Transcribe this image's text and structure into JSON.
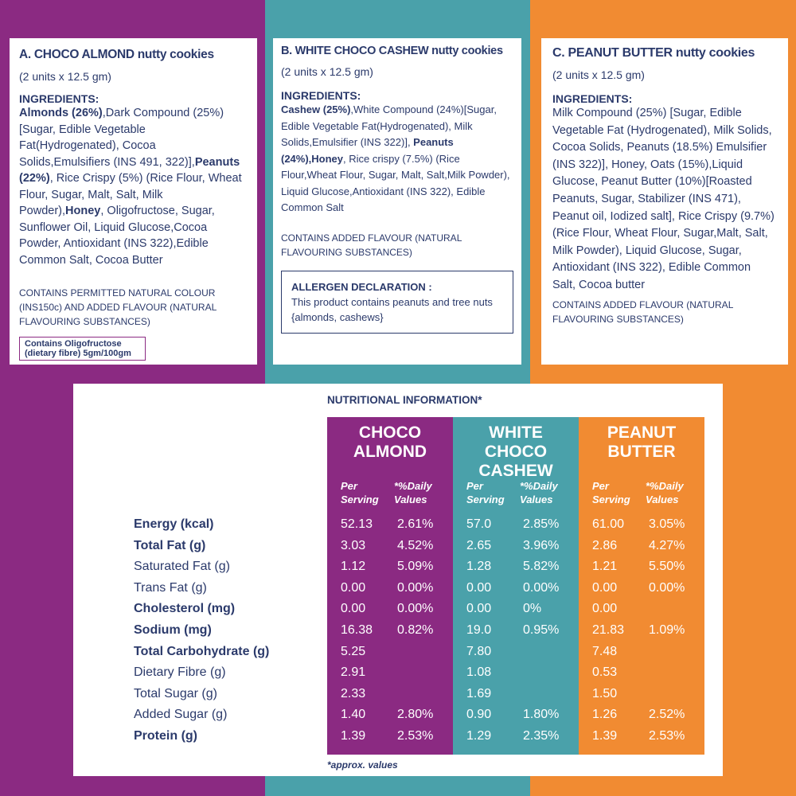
{
  "cards": [
    {
      "title": "A. CHOCO ALMOND nutty cookies",
      "subtitle": "(2 units x 12.5 gm)",
      "ingredients_heading": "INGREDIENTS:",
      "ingredients": [
        {
          "text": "Almonds (26%)",
          "bold": true
        },
        {
          "text": ",Dark Compound (25%)[Sugar, Edible Vegetable Fat(Hydrogenated), Cocoa Solids,Emulsifiers (INS 491, 322)],",
          "bold": false
        },
        {
          "text": "Peanuts (22%)",
          "bold": true
        },
        {
          "text": ", Rice Crispy (5%) (Rice Flour, Wheat Flour, Sugar, Malt, Salt, Milk Powder),",
          "bold": false
        },
        {
          "text": "Honey",
          "bold": true
        },
        {
          "text": ", Oligofructose, Sugar, Sunflower Oil, Liquid Glucose,Cocoa Powder, Antioxidant (INS 322),Edible Common Salt, Cocoa Butter",
          "bold": false
        }
      ],
      "note": "CONTAINS PERMITTED NATURAL COLOUR (INS150c) AND ADDED FLAVOUR (NATURAL FLAVOURING SUBSTANCES)",
      "badge": "Contains Oligofructose (dietary fibre) 5gm/100gm"
    },
    {
      "title": "B. WHITE CHOCO CASHEW nutty cookies",
      "subtitle": "(2 units x 12.5 gm)",
      "ingredients_heading": "INGREDIENTS:",
      "ingredients": [
        {
          "text": "Cashew (25%)",
          "bold": true
        },
        {
          "text": ",White Compound (24%)[Sugar, Edible Vegetable Fat(Hydrogenated), Milk Solids,Emulsifier (INS 322)], ",
          "bold": false
        },
        {
          "text": "Peanuts (24%),Honey",
          "bold": true
        },
        {
          "text": ", Rice crispy (7.5%) (Rice Flour,Wheat Flour, Sugar, Malt, Salt,Milk Powder), Liquid Glucose,Antioxidant (INS 322), Edible Common Salt",
          "bold": false
        }
      ],
      "note": "CONTAINS ADDED FLAVOUR (NATURAL FLAVOURING SUBSTANCES)",
      "allergen": {
        "heading": "ALLERGEN DECLARATION :",
        "text": "This product contains peanuts and tree nuts {almonds, cashews}"
      }
    },
    {
      "title": "C. PEANUT BUTTER nutty cookies",
      "subtitle": "(2 units x 12.5 gm)",
      "ingredients_heading": "INGREDIENTS:",
      "ingredients": [
        {
          "text": "Milk Compound (25%) [Sugar, Edible Vegetable Fat (Hydrogenated), Milk Solids, Cocoa Solids, Peanuts (18.5%) Emulsifier (INS 322)], Honey, Oats (15%),Liquid Glucose, Peanut Butter (10%)[Roasted Peanuts, Sugar, Stabilizer (INS 471), Peanut oil, Iodized salt], Rice Crispy (9.7%) (Rice Flour, Wheat Flour, Sugar,Malt, Salt, Milk Powder), Liquid Glucose, Sugar, Antioxidant (INS 322), Edible Common Salt, Cocoa butter",
          "bold": false
        }
      ],
      "note": "CONTAINS ADDED FLAVOUR (NATURAL FLAVOURING SUBSTANCES)"
    }
  ],
  "nutrition": {
    "title": "NUTRITIONAL INFORMATION*",
    "footnote": "*approx. values",
    "rows": [
      {
        "label": "Energy (kcal)",
        "bold": true
      },
      {
        "label": "Total Fat (g)",
        "bold": true
      },
      {
        "label": "Saturated Fat (g)",
        "bold": false
      },
      {
        "label": "Trans Fat (g)",
        "bold": false
      },
      {
        "label": "Cholesterol (mg)",
        "bold": true
      },
      {
        "label": "Sodium (mg)",
        "bold": true
      },
      {
        "label": "Total Carbohydrate (g)",
        "bold": true
      },
      {
        "label": "Dietary Fibre (g)",
        "bold": false
      },
      {
        "label": "Total Sugar (g)",
        "bold": false
      },
      {
        "label": "Added Sugar (g)",
        "bold": false
      },
      {
        "label": "Protein (g)",
        "bold": true
      }
    ],
    "columns": [
      {
        "name": "CHOCO ALMOND",
        "color": "#8b2a82",
        "per_serving": "Per Serving",
        "daily": "*%Daily Values",
        "values": [
          [
            "52.13",
            "2.61%"
          ],
          [
            "3.03",
            "4.52%"
          ],
          [
            "1.12",
            "5.09%"
          ],
          [
            "0.00",
            "0.00%"
          ],
          [
            "0.00",
            "0.00%"
          ],
          [
            "16.38",
            "0.82%"
          ],
          [
            "5.25",
            null
          ],
          [
            "2.91",
            null
          ],
          [
            "2.33",
            null
          ],
          [
            "1.40",
            "2.80%"
          ],
          [
            "1.39",
            "2.53%"
          ]
        ]
      },
      {
        "name": "WHITE CHOCO CASHEW",
        "color": "#4aa1aa",
        "per_serving": "Per Serving",
        "daily": "*%Daily Values",
        "values": [
          [
            "57.0",
            "2.85%"
          ],
          [
            "2.65",
            "3.96%"
          ],
          [
            "1.28",
            "5.82%"
          ],
          [
            "0.00",
            "0.00%"
          ],
          [
            "0.00",
            "0%"
          ],
          [
            "19.0",
            "0.95%"
          ],
          [
            "7.80",
            null
          ],
          [
            "1.08",
            null
          ],
          [
            "1.69",
            null
          ],
          [
            "0.90",
            "1.80%"
          ],
          [
            "1.29",
            "2.35%"
          ]
        ]
      },
      {
        "name": "PEANUT BUTTER",
        "color": "#f18b32",
        "per_serving": "Per Serving",
        "daily": "*%Daily Values",
        "values": [
          [
            "61.00",
            "3.05%"
          ],
          [
            "2.86",
            "4.27%"
          ],
          [
            "1.21",
            "5.50%"
          ],
          [
            "0.00",
            "0.00%"
          ],
          [
            "0.00",
            null
          ],
          [
            "21.83",
            "1.09%"
          ],
          [
            "7.48",
            null
          ],
          [
            "0.53",
            null
          ],
          [
            "1.50",
            null
          ],
          [
            "1.26",
            "2.52%"
          ],
          [
            "1.39",
            "2.53%"
          ]
        ]
      }
    ]
  }
}
